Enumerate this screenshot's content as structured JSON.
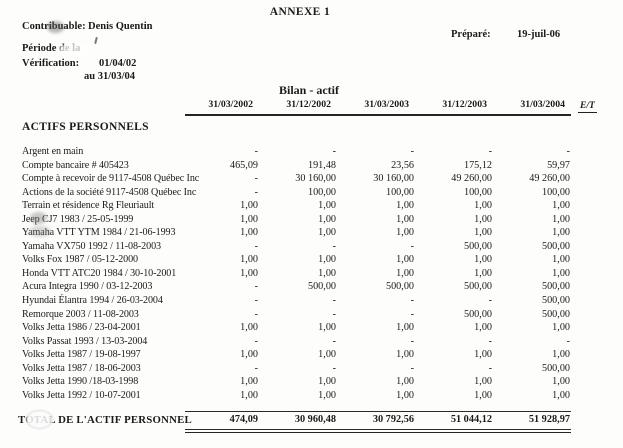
{
  "header": {
    "annexe_title": "ANNEXE 1",
    "contribuable_label": "Contribuable:",
    "contribuable_value": "Denis Quentin",
    "prepare_label": "Préparé:",
    "prepare_value": "19-juil-06",
    "periode_label": "Période de la",
    "verification_label": "Vérification:",
    "verification_from": "01/04/02",
    "verification_to": "au 31/03/04",
    "bilan_title": "Bilan - actif"
  },
  "table": {
    "columns": [
      "31/03/2002",
      "31/12/2002",
      "31/03/2003",
      "31/12/2003",
      "31/03/2004"
    ],
    "et_label": "E/T",
    "section_header": "ACTIFS PERSONNELS",
    "rows": [
      {
        "label": "Argent en main",
        "values": [
          "-",
          "-",
          "-",
          "-",
          "-"
        ]
      },
      {
        "label": "Compte bancaire # 405423",
        "values": [
          "465,09",
          "191,48",
          "23,56",
          "175,12",
          "59,97"
        ]
      },
      {
        "label": "Compte à recevoir de 9117-4508 Québec Inc",
        "values": [
          "-",
          "30 160,00",
          "30 160,00",
          "49 260,00",
          "49 260,00"
        ]
      },
      {
        "label": "Actions de la société 9117-4508 Québec Inc",
        "values": [
          "-",
          "100,00",
          "100,00",
          "100,00",
          "100,00"
        ]
      },
      {
        "label": "Terrain et résidence Rg Fleuriault",
        "values": [
          "1,00",
          "1,00",
          "1,00",
          "1,00",
          "1,00"
        ]
      },
      {
        "label": "Jeep CJ7 1983 / 25-05-1999",
        "values": [
          "1,00",
          "1,00",
          "1,00",
          "1,00",
          "1,00"
        ]
      },
      {
        "label": "Yamaha VTT YTM 1984 / 21-06-1993",
        "values": [
          "1,00",
          "1,00",
          "1,00",
          "1,00",
          "1,00"
        ]
      },
      {
        "label": "Yamaha VX750 1992 / 11-08-2003",
        "values": [
          "-",
          "-",
          "-",
          "500,00",
          "500,00"
        ]
      },
      {
        "label": "Volks Fox 1987 / 05-12-2000",
        "values": [
          "1,00",
          "1,00",
          "1,00",
          "1,00",
          "1,00"
        ]
      },
      {
        "label": "Honda VTT ATC20 1984 / 30-10-2001",
        "values": [
          "1,00",
          "1,00",
          "1,00",
          "1,00",
          "1,00"
        ]
      },
      {
        "label": "Acura Integra 1990 / 03-12-2003",
        "values": [
          "-",
          "500,00",
          "500,00",
          "500,00",
          "500,00"
        ]
      },
      {
        "label": "Hyundai Élantra 1994 / 26-03-2004",
        "values": [
          "-",
          "-",
          "-",
          "-",
          "500,00"
        ]
      },
      {
        "label": "Remorque 2003 / 11-08-2003",
        "values": [
          "-",
          "-",
          "-",
          "500,00",
          "500,00"
        ]
      },
      {
        "label": "Volks Jetta 1986 / 23-04-2001",
        "values": [
          "1,00",
          "1,00",
          "1,00",
          "1,00",
          "1,00"
        ]
      },
      {
        "label": "Volks Passat 1993 / 13-03-2004",
        "values": [
          "-",
          "-",
          "-",
          "-",
          "-"
        ]
      },
      {
        "label": "Volks Jetta 1987 / 19-08-1997",
        "values": [
          "1,00",
          "1,00",
          "1,00",
          "1,00",
          "1,00"
        ]
      },
      {
        "label": "Volks Jetta 1987 / 18-06-2003",
        "values": [
          "-",
          "-",
          "-",
          "-",
          "500,00"
        ]
      },
      {
        "label": "Volks Jetta 1990 /18-03-1998",
        "values": [
          "1,00",
          "1,00",
          "1,00",
          "1,00",
          "1,00"
        ]
      },
      {
        "label": "Volks Jetta 1992 / 10-07-2001",
        "values": [
          "1,00",
          "1,00",
          "1,00",
          "1,00",
          "1,00"
        ]
      }
    ],
    "total": {
      "label": "TOTAL DE L'ACTIF PERSONNEL",
      "values": [
        "474,09",
        "30 960,48",
        "30 792,56",
        "51 044,12",
        "51 928,97"
      ]
    }
  }
}
